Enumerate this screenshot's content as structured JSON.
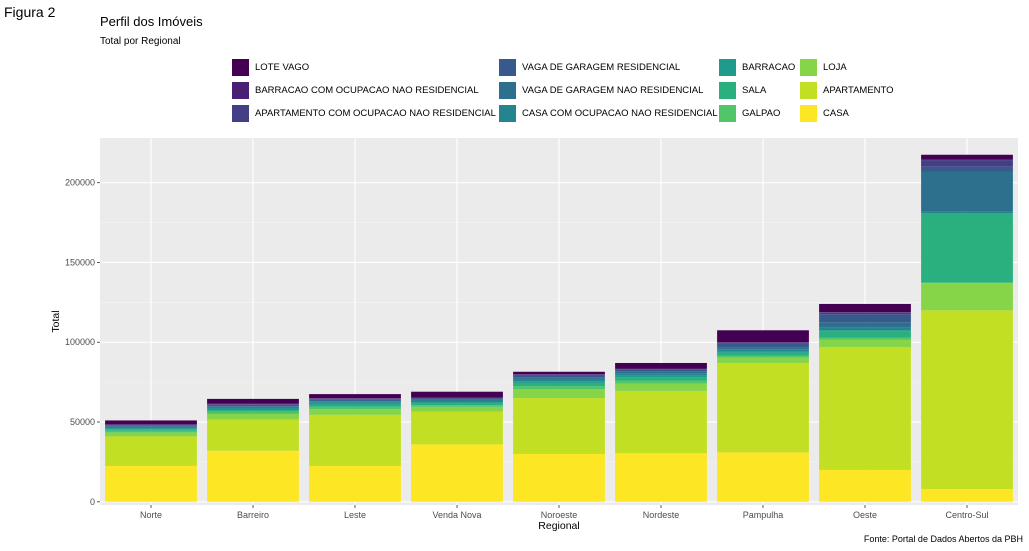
{
  "figure_label": "Figura 2",
  "caption": "Fonte: Portal de Dados Abertos da PBH",
  "chart_data": {
    "type": "bar",
    "stacked": true,
    "title": "Perfil dos Imóveis",
    "subtitle": "Total por Regional",
    "xlabel": "Regional",
    "ylabel": "Total",
    "ylim": [
      -2000,
      228000
    ],
    "yticks": [
      0,
      50000,
      100000,
      150000,
      200000
    ],
    "ytick_labels": [
      "0",
      "50000",
      "100000",
      "150000",
      "200000"
    ],
    "grid": true,
    "legend_position": "top",
    "categories": [
      "Norte",
      "Barreiro",
      "Leste",
      "Venda Nova",
      "Noroeste",
      "Nordeste",
      "Pampulha",
      "Oeste",
      "Centro-Sul"
    ],
    "legend": [
      "LOTE VAGO",
      "BARRACAO COM OCUPACAO NAO RESIDENCIAL",
      "APARTAMENTO COM OCUPACAO NAO RESIDENCIAL",
      "VAGA DE GARAGEM RESIDENCIAL",
      "VAGA DE GARAGEM NAO RESIDENCIAL",
      "CASA COM OCUPACAO NAO RESIDENCIAL",
      "BARRACAO",
      "SALA",
      "GALPAO",
      "LOJA",
      "APARTAMENTO",
      "CASA"
    ],
    "series": [
      {
        "name": "CASA",
        "color": "#FDE725",
        "values": [
          22500,
          32000,
          22500,
          36000,
          30000,
          30500,
          31000,
          20000,
          8000
        ]
      },
      {
        "name": "APARTAMENTO",
        "color": "#C2DF23",
        "values": [
          18500,
          19500,
          32000,
          20500,
          35000,
          39000,
          56000,
          77000,
          112000
        ]
      },
      {
        "name": "LOJA",
        "color": "#86D549",
        "values": [
          2500,
          3500,
          3500,
          3000,
          5500,
          4500,
          3500,
          4500,
          17000
        ]
      },
      {
        "name": "GALPAO",
        "color": "#52C569",
        "values": [
          1000,
          1500,
          1500,
          1000,
          2000,
          2000,
          1000,
          1500,
          500
        ]
      },
      {
        "name": "SALA",
        "color": "#2AB07F",
        "values": [
          1000,
          1000,
          1500,
          1000,
          2000,
          2000,
          2000,
          4000,
          43000
        ]
      },
      {
        "name": "BARRACAO",
        "color": "#1E9B8A",
        "values": [
          700,
          1000,
          1000,
          1000,
          1000,
          1000,
          600,
          500,
          500
        ]
      },
      {
        "name": "CASA COM OCUPACAO NAO RESIDENCIAL",
        "color": "#25858E",
        "values": [
          800,
          1000,
          1000,
          1000,
          1500,
          1500,
          1500,
          2000,
          1000
        ]
      },
      {
        "name": "VAGA DE GARAGEM NAO RESIDENCIAL",
        "color": "#2D708E",
        "values": [
          500,
          500,
          500,
          500,
          1000,
          1000,
          1000,
          3000,
          25000
        ]
      },
      {
        "name": "VAGA DE GARAGEM RESIDENCIAL",
        "color": "#38598C",
        "values": [
          500,
          800,
          800,
          800,
          1200,
          1200,
          2500,
          5000,
          3000
        ]
      },
      {
        "name": "APARTAMENTO COM OCUPACAO NAO RESIDENCIAL",
        "color": "#433E85",
        "values": [
          300,
          300,
          300,
          300,
          500,
          500,
          500,
          1000,
          4000
        ]
      },
      {
        "name": "BARRACAO COM OCUPACAO NAO RESIDENCIAL",
        "color": "#482173",
        "values": [
          200,
          300,
          300,
          300,
          300,
          300,
          400,
          300,
          400
        ]
      },
      {
        "name": "LOTE VAGO",
        "color": "#440154",
        "values": [
          2500,
          3100,
          2600,
          3600,
          1500,
          3500,
          7500,
          5200,
          3100
        ]
      }
    ]
  }
}
